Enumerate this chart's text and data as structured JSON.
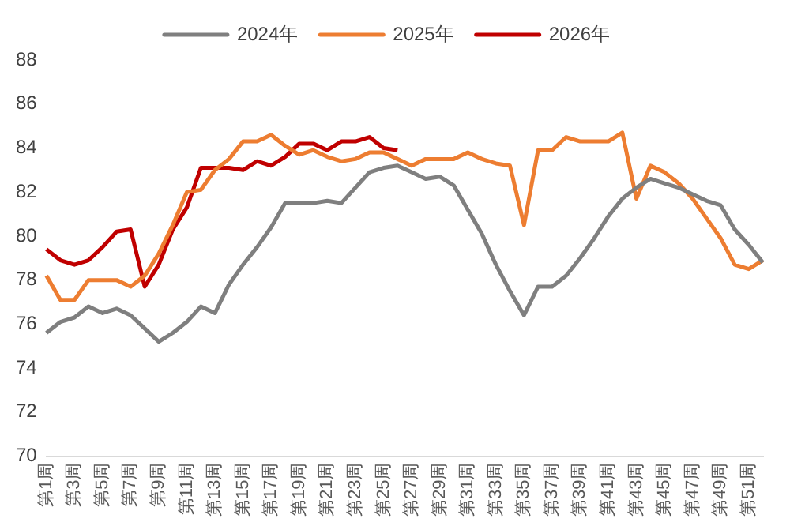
{
  "chart_data": {
    "type": "line",
    "categories": [
      "第1周",
      null,
      "第3周",
      null,
      "第5周",
      null,
      "第7周",
      null,
      "第9周",
      null,
      "第11周",
      null,
      "第13周",
      null,
      "第15周",
      null,
      "第17周",
      null,
      "第19周",
      null,
      "第21周",
      null,
      "第23周",
      null,
      "第25周",
      null,
      "第27周",
      null,
      "第29周",
      null,
      "第31周",
      null,
      "第33周",
      null,
      "第35周",
      null,
      "第37周",
      null,
      "第39周",
      null,
      "第41周",
      null,
      "第43周",
      null,
      "第45周",
      null,
      "第47周",
      null,
      "第49周",
      null,
      "第51周",
      null
    ],
    "series": [
      {
        "name": "2024年",
        "color": "#7f7f7f",
        "values": [
          75.6,
          76.1,
          76.3,
          76.8,
          76.5,
          76.7,
          76.4,
          75.8,
          75.2,
          75.6,
          76.1,
          76.8,
          76.5,
          77.8,
          78.7,
          79.5,
          80.4,
          81.5,
          81.5,
          81.5,
          81.6,
          81.5,
          82.2,
          82.9,
          83.1,
          83.2,
          82.9,
          82.6,
          82.7,
          82.3,
          81.2,
          80.1,
          78.7,
          77.5,
          76.4,
          77.7,
          77.7,
          78.2,
          79.0,
          79.9,
          80.9,
          81.7,
          82.2,
          82.6,
          82.4,
          82.2,
          81.9,
          81.6,
          81.4,
          80.3,
          79.6,
          78.8
        ]
      },
      {
        "name": "2025年",
        "color": "#ed7d31",
        "values": [
          78.2,
          77.1,
          77.1,
          78.0,
          78.0,
          78.0,
          77.7,
          78.2,
          79.2,
          80.5,
          82.0,
          82.1,
          83.0,
          83.5,
          84.3,
          84.3,
          84.6,
          84.1,
          83.7,
          83.9,
          83.6,
          83.4,
          83.5,
          83.8,
          83.8,
          83.5,
          83.2,
          83.5,
          83.5,
          83.5,
          83.8,
          83.5,
          83.3,
          83.2,
          80.5,
          83.9,
          83.9,
          84.5,
          84.3,
          84.3,
          84.3,
          84.7,
          81.7,
          83.2,
          82.9,
          82.4,
          81.7,
          80.8,
          79.9,
          78.7,
          78.5,
          78.9
        ]
      },
      {
        "name": "2026年",
        "color": "#c00000",
        "values": [
          79.4,
          78.9,
          78.7,
          78.9,
          79.5,
          80.2,
          80.3,
          77.7,
          78.7,
          80.3,
          81.3,
          83.1,
          83.1,
          83.1,
          83.0,
          83.4,
          83.2,
          83.6,
          84.2,
          84.2,
          83.9,
          84.3,
          84.3,
          84.5,
          84.0,
          83.9,
          null,
          null,
          null,
          null,
          null,
          null,
          null,
          null,
          null,
          null,
          null,
          null,
          null,
          null,
          null,
          null,
          null,
          null,
          null,
          null,
          null,
          null,
          null,
          null,
          null,
          null
        ]
      }
    ],
    "ylim": [
      70,
      88
    ],
    "yticks": [
      70,
      72,
      74,
      76,
      78,
      80,
      82,
      84,
      86,
      88
    ],
    "grid": false,
    "legend": "top",
    "marker": "none",
    "line_style": "solid"
  }
}
